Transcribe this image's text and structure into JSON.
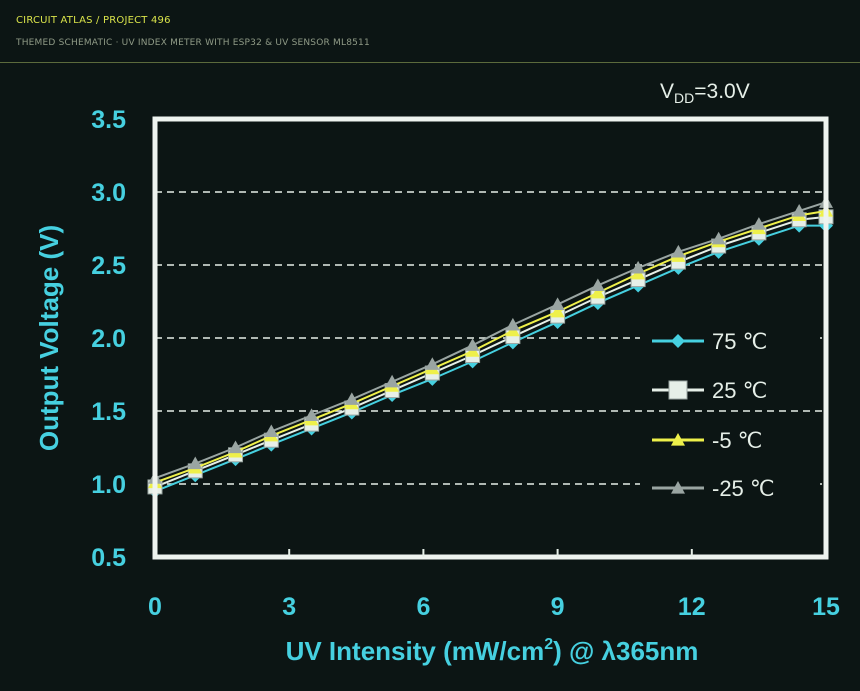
{
  "header": {
    "breadcrumb": "CIRCUIT ATLAS / PROJECT 496",
    "subtitle": "THEMED SCHEMATIC · UV INDEX METER WITH ESP32 & UV SENSOR ML8511"
  },
  "chart_data": {
    "type": "line",
    "annotation": {
      "main": "V",
      "sub": "DD",
      "suffix": "=3.0V"
    },
    "xlabel": {
      "pre": "UV Intensity (mW/cm",
      "sup": "2",
      "post": ") @ λ365nm"
    },
    "ylabel": "Output Voltage (V)",
    "xlim": [
      0,
      15
    ],
    "ylim": [
      0.5,
      3.5
    ],
    "x_ticks": [
      "0",
      "3",
      "6",
      "9",
      "12",
      "15"
    ],
    "y_ticks": [
      "3.5",
      "3.0",
      "2.5",
      "2.0",
      "1.5",
      "1.0",
      "0.5"
    ],
    "grid": "horizontal dashed",
    "legend_position": "right",
    "x": [
      0,
      0.9,
      1.8,
      2.6,
      3.5,
      4.4,
      5.3,
      6.2,
      7.1,
      8.0,
      9.0,
      9.9,
      10.8,
      11.7,
      12.6,
      13.5,
      14.4,
      15.0
    ],
    "series": [
      {
        "name": "75 ℃",
        "marker": "diamond",
        "color": "#46d0e0",
        "values": [
          0.95,
          1.06,
          1.17,
          1.27,
          1.38,
          1.49,
          1.61,
          1.72,
          1.84,
          1.97,
          2.11,
          2.24,
          2.36,
          2.48,
          2.59,
          2.68,
          2.77,
          2.77
        ]
      },
      {
        "name": "25 ℃",
        "marker": "square",
        "color": "#e6efe8",
        "values": [
          0.98,
          1.09,
          1.2,
          1.3,
          1.41,
          1.52,
          1.64,
          1.76,
          1.88,
          2.01,
          2.15,
          2.28,
          2.4,
          2.52,
          2.63,
          2.72,
          2.81,
          2.83
        ]
      },
      {
        "name": "-5 ℃",
        "marker": "triangle",
        "color": "#eef04a",
        "values": [
          1.01,
          1.11,
          1.22,
          1.33,
          1.44,
          1.55,
          1.67,
          1.79,
          1.91,
          2.05,
          2.18,
          2.31,
          2.44,
          2.56,
          2.66,
          2.75,
          2.84,
          2.87
        ]
      },
      {
        "name": "-25 ℃",
        "marker": "triangle",
        "color": "#9aa5a2",
        "values": [
          1.04,
          1.14,
          1.25,
          1.36,
          1.47,
          1.58,
          1.7,
          1.82,
          1.95,
          2.09,
          2.23,
          2.36,
          2.48,
          2.59,
          2.68,
          2.78,
          2.87,
          2.93
        ]
      }
    ]
  }
}
